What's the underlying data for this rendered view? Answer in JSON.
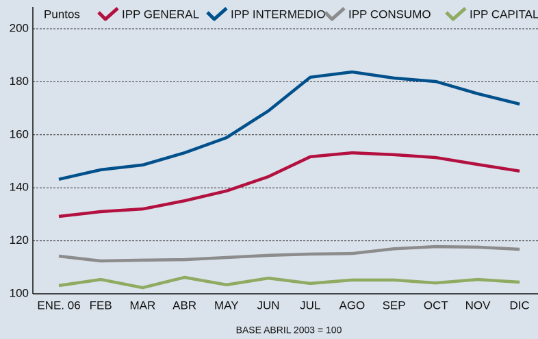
{
  "chart_data": {
    "type": "line",
    "ylabel": "Puntos",
    "xlabel": "BASE ABRIL 2003 = 100",
    "categories": [
      "ENE. 06",
      "FEB",
      "MAR",
      "ABR",
      "MAY",
      "JUN",
      "JUL",
      "AGO",
      "SEP",
      "OCT",
      "NOV",
      "DIC"
    ],
    "series": [
      {
        "name": "IPP GENERAL",
        "color": "#b3103f",
        "values": [
          129.2,
          131,
          132,
          135.1,
          138.8,
          144.2,
          151.7,
          153.2,
          152.5,
          151.4,
          148.8,
          146.3
        ]
      },
      {
        "name": "IPP INTERMEDIO",
        "color": "#00508c",
        "values": [
          143.2,
          146.8,
          148.6,
          153.2,
          158.9,
          169,
          181.7,
          183.7,
          181.4,
          180.1,
          175.5,
          171.6
        ]
      },
      {
        "name": "IPP CONSUMO",
        "color": "#8c8c8c",
        "values": [
          114.2,
          112.4,
          112.7,
          112.9,
          113.7,
          114.5,
          115,
          115.2,
          117,
          117.8,
          117.6,
          116.8
        ]
      },
      {
        "name": "IPP CAPITAL",
        "color": "#8fab62",
        "values": [
          103.1,
          105.4,
          102.3,
          106.2,
          103.4,
          105.9,
          103.9,
          105.2,
          105.2,
          104.1,
          105.4,
          104.4
        ]
      }
    ],
    "ylim": [
      100,
      200
    ],
    "yticks": [
      100,
      120,
      140,
      160,
      180,
      200
    ],
    "grid": true
  }
}
